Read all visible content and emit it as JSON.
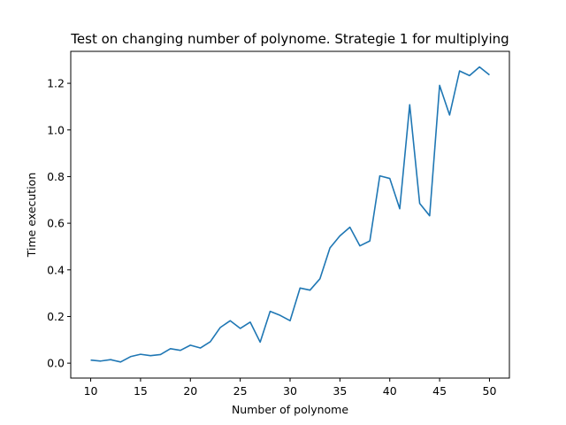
{
  "chart_data": {
    "type": "line",
    "title": "Test on changing number of polynome. Strategie 1 for multiplying",
    "xlabel": "Number of polynome",
    "ylabel": "Time execution",
    "xlim": [
      8,
      52
    ],
    "ylim": [
      -0.064,
      1.337
    ],
    "x_ticks": [
      10,
      15,
      20,
      25,
      30,
      35,
      40,
      45,
      50
    ],
    "x_tick_labels": [
      "10",
      "15",
      "20",
      "25",
      "30",
      "35",
      "40",
      "45",
      "50"
    ],
    "y_ticks": [
      0.0,
      0.2,
      0.4,
      0.6,
      0.8,
      1.0,
      1.2
    ],
    "y_tick_labels": [
      "0.0",
      "0.2",
      "0.4",
      "0.6",
      "0.8",
      "1.0",
      "1.2"
    ],
    "grid": false,
    "line_color": "#1f77b4",
    "series": [
      {
        "x": [
          10,
          11,
          12,
          13,
          14,
          15,
          16,
          17,
          18,
          19,
          20,
          21,
          22,
          23,
          24,
          25,
          26,
          27,
          28,
          29,
          30,
          31,
          32,
          33,
          34,
          35,
          36,
          37,
          38,
          39,
          40,
          41,
          42,
          43,
          44,
          45,
          46,
          47,
          48,
          49,
          50
        ],
        "values": [
          0.013,
          0.009,
          0.015,
          0.005,
          0.028,
          0.038,
          0.032,
          0.037,
          0.062,
          0.055,
          0.077,
          0.065,
          0.092,
          0.153,
          0.182,
          0.149,
          0.176,
          0.09,
          0.222,
          0.205,
          0.182,
          0.322,
          0.313,
          0.362,
          0.494,
          0.546,
          0.583,
          0.503,
          0.524,
          0.803,
          0.792,
          0.662,
          1.108,
          0.685,
          0.632,
          1.191,
          1.064,
          1.253,
          1.233,
          1.27,
          1.236
        ]
      }
    ]
  }
}
